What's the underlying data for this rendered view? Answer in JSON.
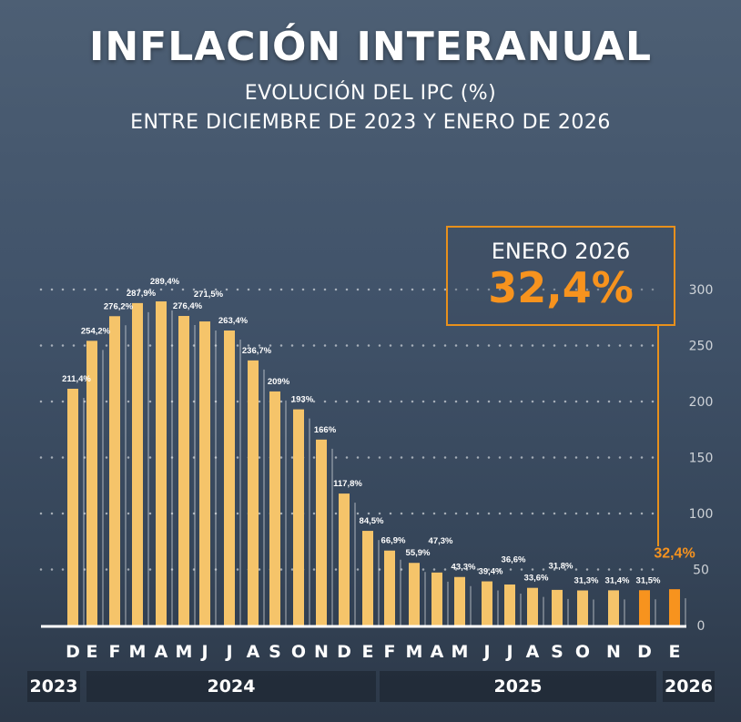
{
  "header": {
    "title": "INFLACIÓN INTERANUAL",
    "subtitle1": "EVOLUCIÓN DEL IPC (%)",
    "subtitle2": "ENTRE DICIEMBRE DE 2023 Y ENERO DE 2026"
  },
  "callout": {
    "label": "ENERO 2026",
    "value": "32,4%"
  },
  "colors": {
    "bar": "#f5c46a",
    "highlight": "#f7931e",
    "background": "#41536a"
  },
  "chart_data": {
    "type": "bar",
    "categories": [
      "D",
      "E",
      "F",
      "M",
      "A",
      "M",
      "J",
      "J",
      "A",
      "S",
      "O",
      "N",
      "D",
      "E",
      "F",
      "M",
      "A",
      "M",
      "J",
      "J",
      "A",
      "S",
      "O",
      "N",
      "D",
      "E"
    ],
    "values": [
      211.4,
      254.2,
      276.2,
      287.9,
      289.4,
      276.4,
      271.5,
      263.4,
      236.7,
      209,
      193,
      166,
      117.8,
      84.5,
      66.9,
      55.9,
      47.3,
      43.3,
      39.4,
      36.6,
      33.6,
      31.8,
      31.3,
      31.4,
      31.5,
      32.4
    ],
    "labels": [
      "211,4%",
      "254,2%",
      "276,2%",
      "287,9%",
      "289,4%",
      "276,4%",
      "271,5%",
      "263,4%",
      "236,7%",
      "209%",
      "193%",
      "166%",
      "117,8%",
      "84,5%",
      "66,9%",
      "55,9%",
      "47,3%",
      "43,3%",
      "39,4%",
      "36,6%",
      "33,6%",
      "31,8%",
      "31,3%",
      "31,4%",
      "31,5%",
      "32,4%"
    ],
    "highlighted": [
      24,
      25
    ],
    "years": [
      "2023",
      "2024",
      "2025",
      "2026"
    ],
    "yticks": [
      "0",
      "50",
      "100",
      "150",
      "200",
      "250",
      "300"
    ],
    "ylim": [
      0,
      300
    ],
    "grid": true
  }
}
